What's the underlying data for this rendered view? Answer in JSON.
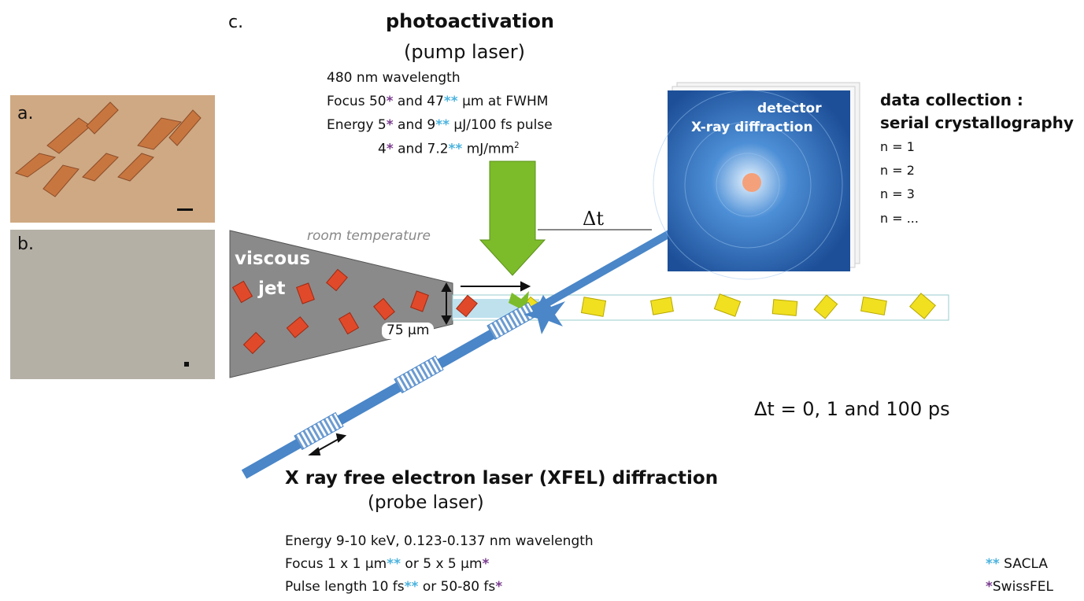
{
  "labels": {
    "a": "a.",
    "b": "b.",
    "c": "c."
  },
  "pump": {
    "title": "photoactivation",
    "subtitle": "(pump laser)",
    "lines": [
      [
        "480 nm wavelength"
      ],
      [
        "Focus 50",
        "*",
        " and 47",
        "**",
        " µm at FWHM"
      ],
      [
        "Energy 5",
        "*",
        " and 9",
        "**",
        " µJ/100 fs pulse"
      ],
      [
        "4",
        "*",
        " and 7.2",
        "**",
        " mJ/mm",
        "2"
      ]
    ]
  },
  "delay": "Δt",
  "room_temperature": "room temperature",
  "jet": [
    "viscous",
    "jet"
  ],
  "jet_width": "75 µm",
  "detector": [
    "detector",
    "X-ray diffraction"
  ],
  "data_collection": {
    "title": [
      "data collection :",
      "serial crystallography"
    ],
    "frames": [
      "n = 1",
      "n = 2",
      "n = 3",
      "n = ..."
    ]
  },
  "delay_values": "Δt = 0, 1 and 100 ps",
  "probe": {
    "title": "X ray free electron laser (XFEL) diffraction",
    "subtitle": "(probe laser)",
    "lines": [
      [
        "Energy 9-10 keV, 0.123-0.137 nm wavelength"
      ],
      [
        "Focus 1 x 1 µm",
        "**",
        " or 5 x 5 µm",
        "*"
      ],
      [
        "Pulse length 10 fs",
        "**",
        " or 50-80 fs",
        "*"
      ]
    ]
  },
  "legend": [
    [
      "**",
      " SACLA"
    ],
    [
      "*",
      "SwissFEL"
    ]
  ]
}
